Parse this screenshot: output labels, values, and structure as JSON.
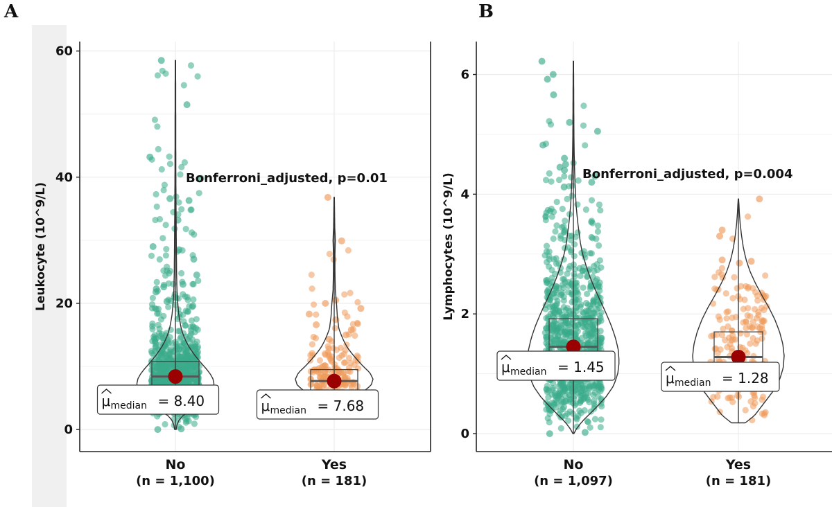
{
  "panels": {
    "a": {
      "letter": "A"
    },
    "b": {
      "letter": "B"
    }
  },
  "colors": {
    "no_group": "#3aab8a",
    "yes_group": "#ef9a5b",
    "median_dot": "#9b0000",
    "axis": "#222222",
    "grid": "#ececec"
  },
  "chart_data": [
    {
      "type": "violin-box-scatter",
      "ylabel": "Leukocyte (10^9/L)",
      "ylim": [
        -3.5,
        61.5
      ],
      "yticks": [
        0,
        20,
        40,
        60
      ],
      "categories": [
        "No",
        "Yes"
      ],
      "n_labels": [
        "(n = 1,100)",
        "(n = 181)"
      ],
      "annotation": "Bonferroni_adjusted, p=0.01",
      "median_labels": {
        "prefix": "μ",
        "subscript": "median",
        "values": [
          "= 8.40",
          "= 7.68"
        ]
      },
      "groups": [
        {
          "name": "No",
          "n": 1100,
          "color_key": "no_group",
          "median": 8.4,
          "q1": 6.6,
          "q3": 10.8,
          "min": 0.0,
          "max": 58.5,
          "violin_profile": [
            [
              0,
              0.02
            ],
            [
              1,
              0.05
            ],
            [
              2,
              0.14
            ],
            [
              3,
              0.4
            ],
            [
              4,
              0.65
            ],
            [
              5,
              0.85
            ],
            [
              6,
              0.97
            ],
            [
              7,
              1.0
            ],
            [
              8,
              0.97
            ],
            [
              9,
              0.88
            ],
            [
              10,
              0.74
            ],
            [
              11,
              0.6
            ],
            [
              12,
              0.47
            ],
            [
              13,
              0.36
            ],
            [
              14,
              0.27
            ],
            [
              15,
              0.2
            ],
            [
              16,
              0.15
            ],
            [
              18,
              0.09
            ],
            [
              20,
              0.06
            ],
            [
              22,
              0.04
            ],
            [
              25,
              0.03
            ],
            [
              28,
              0.025
            ],
            [
              32,
              0.02
            ],
            [
              36,
              0.015
            ],
            [
              40,
              0.012
            ],
            [
              44,
              0.01
            ],
            [
              50,
              0.008
            ],
            [
              58.5,
              0.005
            ]
          ],
          "outliers": [
            58.5,
            51.5,
            43.2,
            39.8,
            36.6,
            36.3,
            33.2,
            29.0,
            28.5,
            27.0,
            24.5,
            23.0,
            22.6,
            22.3,
            21.8,
            21.0,
            20.3,
            19.6,
            0.1,
            0.0
          ]
        },
        {
          "name": "Yes",
          "n": 181,
          "color_key": "yes_group",
          "median": 7.68,
          "q1": 6.2,
          "q3": 9.5,
          "min": 2.4,
          "max": 36.8,
          "violin_profile": [
            [
              2.4,
              0.02
            ],
            [
              4,
              0.2
            ],
            [
              5,
              0.45
            ],
            [
              6,
              0.75
            ],
            [
              7,
              0.95
            ],
            [
              8,
              1.0
            ],
            [
              9,
              0.92
            ],
            [
              10,
              0.75
            ],
            [
              11,
              0.6
            ],
            [
              12,
              0.46
            ],
            [
              13,
              0.34
            ],
            [
              14,
              0.25
            ],
            [
              15,
              0.18
            ],
            [
              16,
              0.12
            ],
            [
              18,
              0.08
            ],
            [
              20,
              0.06
            ],
            [
              22,
              0.03
            ],
            [
              25,
              0.02
            ],
            [
              28,
              0.02
            ],
            [
              30,
              0.03
            ],
            [
              32,
              0.015
            ],
            [
              36.8,
              0.005
            ]
          ],
          "outliers": [
            36.8,
            29.9,
            20.5,
            20.0,
            19.2,
            18.3,
            17.4,
            16.6,
            15.8,
            15.0,
            14.3
          ]
        }
      ]
    },
    {
      "type": "violin-box-scatter",
      "ylabel": "Lymphocytes (10^9/L)",
      "ylim": [
        -0.3,
        6.55
      ],
      "yticks": [
        0,
        2,
        4,
        6
      ],
      "categories": [
        "No",
        "Yes"
      ],
      "n_labels": [
        "(n = 1,097)",
        "(n = 181)"
      ],
      "annotation": "Bonferroni_adjusted, p=0.004",
      "median_labels": {
        "prefix": "μ",
        "subscript": "median",
        "values": [
          "= 1.45",
          "= 1.28"
        ]
      },
      "groups": [
        {
          "name": "No",
          "n": 1097,
          "color_key": "no_group",
          "median": 1.45,
          "q1": 1.05,
          "q3": 1.92,
          "min": 0.0,
          "max": 6.22,
          "violin_profile": [
            [
              0,
              0.01
            ],
            [
              0.1,
              0.08
            ],
            [
              0.25,
              0.25
            ],
            [
              0.4,
              0.45
            ],
            [
              0.6,
              0.7
            ],
            [
              0.8,
              0.88
            ],
            [
              1.0,
              0.97
            ],
            [
              1.2,
              1.0
            ],
            [
              1.4,
              0.98
            ],
            [
              1.6,
              0.92
            ],
            [
              1.8,
              0.83
            ],
            [
              2.0,
              0.72
            ],
            [
              2.2,
              0.6
            ],
            [
              2.4,
              0.48
            ],
            [
              2.6,
              0.37
            ],
            [
              2.8,
              0.28
            ],
            [
              3.0,
              0.2
            ],
            [
              3.2,
              0.15
            ],
            [
              3.5,
              0.1
            ],
            [
              3.8,
              0.06
            ],
            [
              4.2,
              0.035
            ],
            [
              4.6,
              0.02
            ],
            [
              5.0,
              0.012
            ],
            [
              5.6,
              0.008
            ],
            [
              6.22,
              0.004
            ]
          ],
          "outliers": [
            6.22,
            6.0,
            5.92,
            5.66,
            5.2,
            5.05,
            4.82,
            4.6,
            4.5,
            4.45,
            4.4,
            4.3,
            4.2,
            4.12,
            0.02,
            0.0
          ]
        },
        {
          "name": "Yes",
          "n": 181,
          "color_key": "yes_group",
          "median": 1.28,
          "q1": 0.95,
          "q3": 1.7,
          "min": 0.18,
          "max": 3.92,
          "violin_profile": [
            [
              0.18,
              0.15
            ],
            [
              0.3,
              0.35
            ],
            [
              0.5,
              0.55
            ],
            [
              0.7,
              0.75
            ],
            [
              0.9,
              0.9
            ],
            [
              1.1,
              0.98
            ],
            [
              1.3,
              1.0
            ],
            [
              1.5,
              0.97
            ],
            [
              1.7,
              0.9
            ],
            [
              1.9,
              0.8
            ],
            [
              2.1,
              0.67
            ],
            [
              2.3,
              0.52
            ],
            [
              2.5,
              0.38
            ],
            [
              2.7,
              0.26
            ],
            [
              2.9,
              0.17
            ],
            [
              3.1,
              0.11
            ],
            [
              3.3,
              0.07
            ],
            [
              3.5,
              0.04
            ],
            [
              3.7,
              0.02
            ],
            [
              3.92,
              0.005
            ]
          ],
          "outliers": [
            3.92,
            3.4,
            3.3,
            2.9,
            2.88,
            2.85
          ]
        }
      ]
    }
  ]
}
